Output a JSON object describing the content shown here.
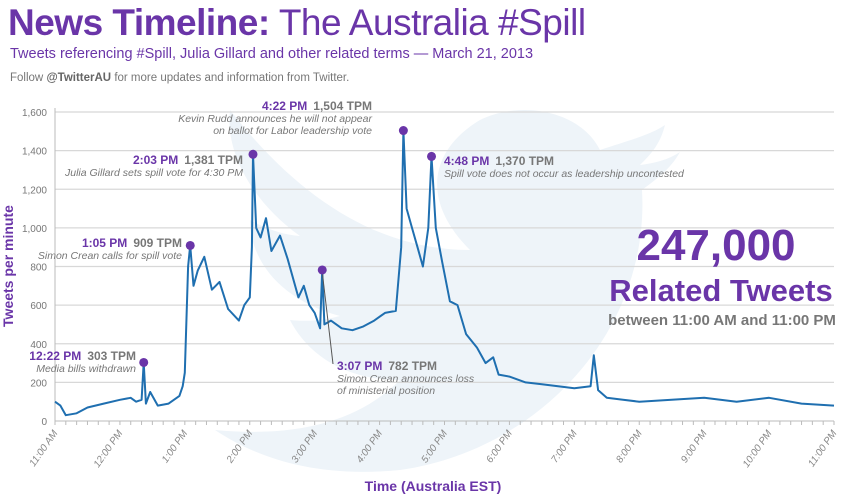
{
  "header": {
    "title_bold": "News Timeline:",
    "title_rest": "The Australia #Spill",
    "subtitle": "Tweets referencing #Spill, Julia Gillard and other related terms — March 21, 2013",
    "follow_pre": "Follow",
    "follow_handle": "@TwitterAU",
    "follow_post": "for more updates and information from Twitter."
  },
  "summary": {
    "count": "247,000",
    "label": "Related Tweets",
    "range": "between 11:00 AM and 11:00 PM"
  },
  "colors": {
    "accent": "#6a35a8",
    "line": "#1f6fb0",
    "grid": "#d8d8d8",
    "watermark": "#eef4f9"
  },
  "watermark_icon": "twitter-bird-icon",
  "annotations": [
    {
      "time": "12:22 PM",
      "tpm": "303 TPM",
      "text": [
        "Media bills withdrawn"
      ]
    },
    {
      "time": "1:05 PM",
      "tpm": "909 TPM",
      "text": [
        "Simon Crean calls for spill vote"
      ]
    },
    {
      "time": "2:03 PM",
      "tpm": "1,381 TPM",
      "text": [
        "Julia Gillard sets spill vote for 4:30  PM"
      ]
    },
    {
      "time": "3:07 PM",
      "tpm": "782 TPM",
      "text": [
        "Simon Crean announces loss",
        "of ministerial position"
      ]
    },
    {
      "time": "4:22 PM",
      "tpm": "1,504 TPM",
      "text": [
        "Kevin Rudd announces he will not appear",
        "on ballot for Labor leadership vote"
      ]
    },
    {
      "time": "4:48 PM",
      "tpm": "1,370 TPM",
      "text": [
        "Spill vote does not occur as leadership uncontested"
      ]
    }
  ],
  "chart_data": {
    "type": "line",
    "title": "",
    "xlabel": "Time (Australia EST)",
    "ylabel": "Tweets per minute",
    "xlim": [
      "11:00 AM",
      "11:00 PM"
    ],
    "ylim": [
      0,
      1600
    ],
    "grid": true,
    "xticks": [
      "11:00 AM",
      "12:00 PM",
      "1:00 PM",
      "2:00 PM",
      "3:00 PM",
      "4:00 PM",
      "5:00 PM",
      "6:00 PM",
      "7:00 PM",
      "8:00 PM",
      "9:00 PM",
      "10:00 PM",
      "11:00 PM"
    ],
    "yticks": [
      "0",
      "200",
      "400",
      "600",
      "800",
      "1,000",
      "1,200",
      "1,400",
      "1,600"
    ],
    "ytick_values": [
      0,
      200,
      400,
      600,
      800,
      1000,
      1200,
      1400,
      1600
    ],
    "highlight_points": [
      [
        "12:22 PM",
        303
      ],
      [
        "1:05 PM",
        909
      ],
      [
        "2:03 PM",
        1381
      ],
      [
        "3:07 PM",
        782
      ],
      [
        "4:22 PM",
        1504
      ],
      [
        "4:48 PM",
        1370
      ]
    ],
    "series": [
      {
        "points": [
          [
            "11:00 AM",
            100
          ],
          [
            "11:05 AM",
            80
          ],
          [
            "11:10 AM",
            30
          ],
          [
            "11:20 AM",
            40
          ],
          [
            "11:30 AM",
            70
          ],
          [
            "11:45 AM",
            90
          ],
          [
            "12:00 PM",
            110
          ],
          [
            "12:10 PM",
            120
          ],
          [
            "12:15 PM",
            100
          ],
          [
            "12:20 PM",
            110
          ],
          [
            "12:22 PM",
            303
          ],
          [
            "12:24 PM",
            90
          ],
          [
            "12:28 PM",
            150
          ],
          [
            "12:35 PM",
            80
          ],
          [
            "12:45 PM",
            90
          ],
          [
            "12:55 PM",
            130
          ],
          [
            "12:58 PM",
            180
          ],
          [
            "1:00 PM",
            250
          ],
          [
            "1:03 PM",
            800
          ],
          [
            "1:05 PM",
            909
          ],
          [
            "1:08 PM",
            700
          ],
          [
            "1:12 PM",
            780
          ],
          [
            "1:18 PM",
            850
          ],
          [
            "1:25 PM",
            680
          ],
          [
            "1:32 PM",
            720
          ],
          [
            "1:40 PM",
            580
          ],
          [
            "1:50 PM",
            520
          ],
          [
            "1:55 PM",
            600
          ],
          [
            "2:00 PM",
            640
          ],
          [
            "2:02 PM",
            900
          ],
          [
            "2:03 PM",
            1381
          ],
          [
            "2:06 PM",
            1000
          ],
          [
            "2:10 PM",
            950
          ],
          [
            "2:15 PM",
            1050
          ],
          [
            "2:20 PM",
            880
          ],
          [
            "2:28 PM",
            960
          ],
          [
            "2:35 PM",
            840
          ],
          [
            "2:45 PM",
            640
          ],
          [
            "2:50 PM",
            700
          ],
          [
            "2:55 PM",
            600
          ],
          [
            "3:00 PM",
            560
          ],
          [
            "3:05 PM",
            480
          ],
          [
            "3:07 PM",
            782
          ],
          [
            "3:09 PM",
            500
          ],
          [
            "3:15 PM",
            520
          ],
          [
            "3:25 PM",
            480
          ],
          [
            "3:35 PM",
            470
          ],
          [
            "3:45 PM",
            490
          ],
          [
            "3:55 PM",
            520
          ],
          [
            "4:05 PM",
            560
          ],
          [
            "4:15 PM",
            570
          ],
          [
            "4:20 PM",
            900
          ],
          [
            "4:22 PM",
            1504
          ],
          [
            "4:25 PM",
            1100
          ],
          [
            "4:30 PM",
            1000
          ],
          [
            "4:35 PM",
            900
          ],
          [
            "4:40 PM",
            800
          ],
          [
            "4:45 PM",
            1000
          ],
          [
            "4:48 PM",
            1370
          ],
          [
            "4:52 PM",
            1000
          ],
          [
            "4:58 PM",
            820
          ],
          [
            "5:05 PM",
            620
          ],
          [
            "5:12 PM",
            600
          ],
          [
            "5:20 PM",
            450
          ],
          [
            "5:30 PM",
            380
          ],
          [
            "5:38 PM",
            300
          ],
          [
            "5:45 PM",
            330
          ],
          [
            "5:50 PM",
            240
          ],
          [
            "6:00 PM",
            230
          ],
          [
            "6:15 PM",
            200
          ],
          [
            "6:30 PM",
            190
          ],
          [
            "6:45 PM",
            180
          ],
          [
            "7:00 PM",
            170
          ],
          [
            "7:15 PM",
            180
          ],
          [
            "7:18 PM",
            340
          ],
          [
            "7:22 PM",
            160
          ],
          [
            "7:30 PM",
            120
          ],
          [
            "7:45 PM",
            110
          ],
          [
            "8:00 PM",
            100
          ],
          [
            "8:30 PM",
            110
          ],
          [
            "9:00 PM",
            120
          ],
          [
            "9:30 PM",
            100
          ],
          [
            "10:00 PM",
            120
          ],
          [
            "10:30 PM",
            90
          ],
          [
            "11:00 PM",
            80
          ]
        ]
      }
    ]
  }
}
